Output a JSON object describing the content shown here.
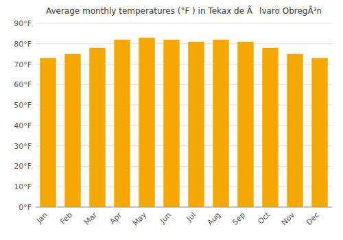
{
  "chart_data": {
    "type": "bar",
    "title": "Average monthly temperatures (°F ) in Tekax de Ãlvaro ObregÃ³n",
    "categories": [
      "Jan",
      "Feb",
      "Mar",
      "Apr",
      "May",
      "Jun",
      "Jul",
      "Aug",
      "Sep",
      "Oct",
      "Nov",
      "Dec"
    ],
    "values": [
      73,
      75,
      78,
      82,
      83,
      82,
      81,
      82,
      81,
      78,
      75,
      73
    ],
    "color": "#F5A800",
    "ylim": [
      0,
      90
    ],
    "yticks": [
      {
        "value": 0,
        "label": "0°F"
      },
      {
        "value": 10,
        "label": "10°F"
      },
      {
        "value": 20,
        "label": "20°F"
      },
      {
        "value": 30,
        "label": "30°F"
      },
      {
        "value": 40,
        "label": "40°F"
      },
      {
        "value": 50,
        "label": "50°F"
      },
      {
        "value": 60,
        "label": "60°F"
      },
      {
        "value": 70,
        "label": "70°F"
      },
      {
        "value": 80,
        "label": "80°F"
      },
      {
        "value": 90,
        "label": "90°F"
      }
    ],
    "grid": true
  }
}
